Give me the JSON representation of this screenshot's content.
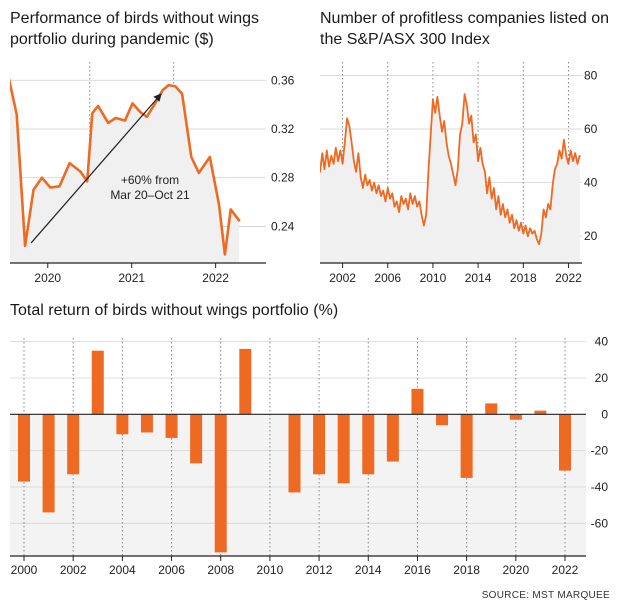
{
  "colors": {
    "accent": "#ee6a22",
    "axis": "#222222",
    "grid": "#888888",
    "fill": "#f0f0f0"
  },
  "chart_data": [
    {
      "type": "line",
      "title": "Performance of birds without wings portfolio during pandemic ($)",
      "x_tick_labels": [
        "2020",
        "2021",
        "2022"
      ],
      "x_ticks": [
        2020,
        2021,
        2022
      ],
      "xlim": [
        2019.55,
        2022.6
      ],
      "ylim": [
        0.21,
        0.375
      ],
      "y_ticks": [
        0.24,
        0.28,
        0.32,
        0.36
      ],
      "y_tick_labels": [
        "0.24",
        "0.28",
        "0.32",
        "0.36"
      ],
      "dotted_gridlines_x": [
        2020.5,
        2021.5
      ],
      "x": [
        2019.5,
        2019.63,
        2019.73,
        2019.83,
        2019.93,
        2020.03,
        2020.14,
        2020.26,
        2020.39,
        2020.47,
        2020.53,
        2020.6,
        2020.72,
        2020.81,
        2020.92,
        2021.01,
        2021.1,
        2021.18,
        2021.27,
        2021.37,
        2021.44,
        2021.52,
        2021.6,
        2021.71,
        2021.8,
        2021.93,
        2022.04,
        2022.11,
        2022.18,
        2022.28
      ],
      "y": [
        0.373,
        0.332,
        0.224,
        0.27,
        0.28,
        0.272,
        0.273,
        0.292,
        0.285,
        0.277,
        0.333,
        0.339,
        0.325,
        0.329,
        0.327,
        0.341,
        0.334,
        0.33,
        0.34,
        0.352,
        0.356,
        0.355,
        0.349,
        0.297,
        0.284,
        0.297,
        0.258,
        0.217,
        0.254,
        0.245
      ],
      "annotation": {
        "text_line1": "+60% from",
        "text_line2": "Mar 20–Oct 21"
      }
    },
    {
      "type": "line",
      "title": "Number of profitless companies listed on the S&P/ASX 300 Index",
      "x_tick_labels": [
        "2002",
        "2006",
        "2010",
        "2014",
        "2018",
        "2022"
      ],
      "x_ticks": [
        2002,
        2006,
        2010,
        2014,
        2018,
        2022
      ],
      "xlim": [
        2000,
        2023.2
      ],
      "ylim": [
        10,
        85
      ],
      "y_ticks": [
        20,
        40,
        60,
        80
      ],
      "y_tick_labels": [
        "20",
        "40",
        "60",
        "80"
      ],
      "dotted_gridlines_x": [
        2002,
        2006,
        2010,
        2014,
        2018,
        2022
      ],
      "x": [
        2000.0,
        2000.2,
        2000.4,
        2000.6,
        2000.8,
        2001.0,
        2001.2,
        2001.4,
        2001.6,
        2001.8,
        2002.0,
        2002.2,
        2002.4,
        2002.6,
        2002.8,
        2003.0,
        2003.2,
        2003.4,
        2003.6,
        2003.8,
        2004.0,
        2004.2,
        2004.4,
        2004.6,
        2004.8,
        2005.0,
        2005.2,
        2005.4,
        2005.6,
        2005.8,
        2006.0,
        2006.2,
        2006.4,
        2006.6,
        2006.8,
        2007.0,
        2007.2,
        2007.4,
        2007.6,
        2007.8,
        2008.0,
        2008.2,
        2008.4,
        2008.6,
        2008.8,
        2009.0,
        2009.2,
        2009.4,
        2009.6,
        2009.8,
        2010.0,
        2010.2,
        2010.4,
        2010.6,
        2010.8,
        2011.0,
        2011.2,
        2011.4,
        2011.6,
        2011.8,
        2012.0,
        2012.2,
        2012.4,
        2012.6,
        2012.8,
        2013.0,
        2013.2,
        2013.4,
        2013.6,
        2013.8,
        2014.0,
        2014.2,
        2014.4,
        2014.6,
        2014.8,
        2015.0,
        2015.2,
        2015.4,
        2015.6,
        2015.8,
        2016.0,
        2016.2,
        2016.4,
        2016.6,
        2016.8,
        2017.0,
        2017.2,
        2017.4,
        2017.6,
        2017.8,
        2018.0,
        2018.2,
        2018.4,
        2018.6,
        2018.8,
        2019.0,
        2019.2,
        2019.4,
        2019.6,
        2019.8,
        2020.0,
        2020.2,
        2020.4,
        2020.6,
        2020.8,
        2021.0,
        2021.2,
        2021.4,
        2021.6,
        2021.8,
        2022.0,
        2022.2,
        2022.4,
        2022.6,
        2022.8,
        2023.0
      ],
      "y": [
        44,
        51,
        45,
        52,
        46,
        50,
        47,
        53,
        48,
        52,
        47,
        55,
        64,
        61,
        55,
        48,
        44,
        51,
        42,
        38,
        43,
        39,
        41,
        37,
        40,
        36,
        39,
        35,
        37,
        33,
        38,
        34,
        36,
        31,
        33,
        29,
        35,
        32,
        34,
        30,
        36,
        32,
        35,
        31,
        33,
        28,
        24,
        28,
        44,
        58,
        71,
        66,
        72,
        65,
        59,
        63,
        55,
        50,
        47,
        43,
        39,
        45,
        58,
        62,
        73,
        69,
        62,
        65,
        55,
        58,
        48,
        53,
        47,
        44,
        36,
        42,
        34,
        38,
        30,
        35,
        28,
        32,
        27,
        30,
        25,
        28,
        23,
        26,
        22,
        25,
        21,
        24,
        20,
        23,
        21,
        22,
        19,
        17,
        21,
        30,
        27,
        32,
        30,
        39,
        45,
        47,
        52,
        49,
        56,
        50,
        47,
        52,
        48,
        51,
        47,
        50
      ]
    },
    {
      "type": "bar",
      "title": "Total return of birds without wings portfolio (%)",
      "categories": [
        2000,
        2001,
        2002,
        2003,
        2004,
        2005,
        2006,
        2007,
        2008,
        2009,
        2010,
        2011,
        2012,
        2013,
        2014,
        2015,
        2016,
        2017,
        2018,
        2019,
        2020,
        2021,
        2022
      ],
      "values": [
        -37,
        -54,
        -33,
        35,
        -11,
        -10,
        -13,
        -27,
        -76,
        36,
        0,
        -43,
        -33,
        -38,
        -33,
        -26,
        14,
        -6,
        -35,
        6,
        -3,
        2,
        -31
      ],
      "x_tick_labels": [
        "2000",
        "2002",
        "2004",
        "2006",
        "2008",
        "2010",
        "2012",
        "2014",
        "2016",
        "2018",
        "2020",
        "2022"
      ],
      "ylim": [
        -78,
        42
      ],
      "y_ticks": [
        40,
        20,
        0,
        -20,
        -40,
        -60
      ],
      "y_tick_labels": [
        "40",
        "20",
        "0",
        "-20",
        "-40",
        "-60"
      ]
    }
  ],
  "source": "SOURCE: MST MARQUEE"
}
